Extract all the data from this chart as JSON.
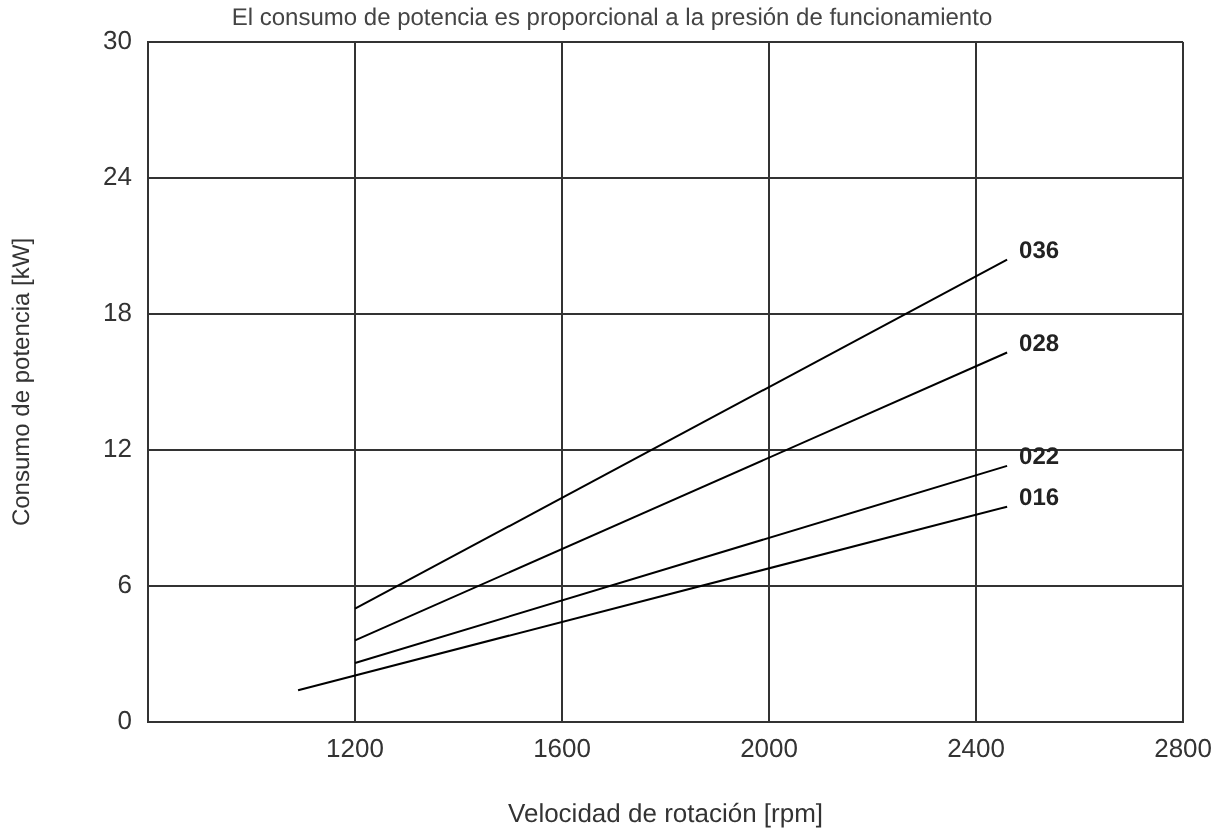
{
  "chart_data": {
    "type": "line",
    "title": "El consumo de potencia es proporcional a la presión de funcionamiento",
    "xlabel": "Velocidad de rotación [rpm]",
    "ylabel": "Consumo de potencia [kW]",
    "xlim": [
      800,
      2800
    ],
    "xticks": [
      {
        "value": 800,
        "label": null
      },
      1200,
      1600,
      2000,
      2400,
      2800
    ],
    "ylim": [
      0,
      30
    ],
    "yticks": [
      0,
      6,
      12,
      18,
      24,
      30
    ],
    "grid": true,
    "legend": false,
    "marker": "none",
    "line_style": "solid",
    "series": [
      {
        "name": "036",
        "color": "#000000",
        "x": [
          1200,
          2460
        ],
        "values": [
          5.0,
          20.4
        ]
      },
      {
        "name": "028",
        "color": "#000000",
        "x": [
          1200,
          2460
        ],
        "values": [
          3.6,
          16.3
        ]
      },
      {
        "name": "022",
        "color": "#000000",
        "x": [
          1200,
          2460
        ],
        "values": [
          2.6,
          11.3
        ]
      },
      {
        "name": "016",
        "color": "#000000",
        "x": [
          1090,
          2460
        ],
        "values": [
          1.4,
          9.5
        ]
      }
    ]
  }
}
